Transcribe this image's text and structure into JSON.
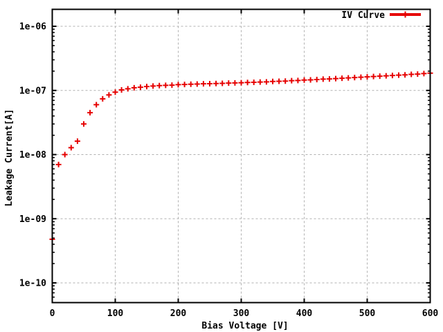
{
  "figure": {
    "background": "#ffffff",
    "border_color": "#000000",
    "grid_color": "#b0b0b0",
    "series_color": "#e60000",
    "legend": {
      "label": "IV Curve",
      "position": "top-right",
      "sample": "line-with-plus-marker"
    }
  },
  "chart_data": {
    "type": "scatter",
    "title": "",
    "xlabel": "Bias Voltage [V]",
    "ylabel": "Leakage Current[A]",
    "x_ticks": [
      0,
      100,
      200,
      300,
      400,
      500,
      600
    ],
    "x_tick_labels": [
      "0",
      "100",
      "200",
      "300",
      "400",
      "500",
      "600"
    ],
    "y_tick_labels": [
      "1e-10",
      "1e-09",
      "1e-08",
      "1e-07",
      "1e-06"
    ],
    "y_tick_exponents": [
      -10,
      -9,
      -8,
      -7,
      -6
    ],
    "xlim": [
      0,
      600
    ],
    "ylim": [
      5e-11,
      1.9e-06
    ],
    "y_scale": "log",
    "grid": true,
    "legend_position": "top-right",
    "marker": "plus",
    "series": [
      {
        "name": "IV Curve",
        "color": "#e60000",
        "marker": "plus",
        "x": [
          0,
          10,
          20,
          30,
          40,
          50,
          60,
          70,
          80,
          90,
          100,
          110,
          120,
          130,
          140,
          150,
          160,
          170,
          180,
          190,
          200,
          210,
          220,
          230,
          240,
          250,
          260,
          270,
          280,
          290,
          300,
          310,
          320,
          330,
          340,
          350,
          360,
          370,
          380,
          390,
          400,
          410,
          420,
          430,
          440,
          450,
          460,
          470,
          480,
          490,
          500,
          510,
          520,
          530,
          540,
          550,
          560,
          570,
          580,
          590,
          600
        ],
        "y": [
          4.8e-10,
          7e-09,
          1e-08,
          1.28e-08,
          1.62e-08,
          3e-08,
          4.5e-08,
          6e-08,
          7.4e-08,
          8.5e-08,
          9.4e-08,
          1.02e-07,
          1.06e-07,
          1.1e-07,
          1.12e-07,
          1.15e-07,
          1.17e-07,
          1.19e-07,
          1.2e-07,
          1.21e-07,
          1.23e-07,
          1.24e-07,
          1.25e-07,
          1.26e-07,
          1.27e-07,
          1.275e-07,
          1.28e-07,
          1.29e-07,
          1.3e-07,
          1.31e-07,
          1.32e-07,
          1.33e-07,
          1.34e-07,
          1.35e-07,
          1.36e-07,
          1.38e-07,
          1.39e-07,
          1.4e-07,
          1.42e-07,
          1.43e-07,
          1.45e-07,
          1.46e-07,
          1.48e-07,
          1.5e-07,
          1.51e-07,
          1.53e-07,
          1.55e-07,
          1.57e-07,
          1.59e-07,
          1.61e-07,
          1.63e-07,
          1.65e-07,
          1.67e-07,
          1.69e-07,
          1.71e-07,
          1.73e-07,
          1.75e-07,
          1.78e-07,
          1.8e-07,
          1.83e-07,
          1.86e-07
        ]
      }
    ]
  }
}
